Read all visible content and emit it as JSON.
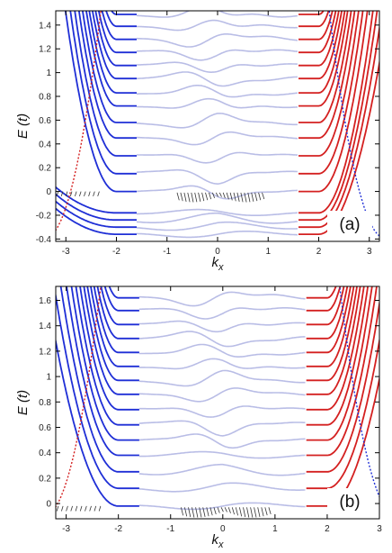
{
  "chart_data": [
    {
      "type": "line",
      "panel_label": "(a)",
      "xlabel_base": "k",
      "xlabel_sub": "x",
      "ylabel": "E (t)",
      "xlim": [
        -3.2,
        3.2
      ],
      "ylim": [
        -0.42,
        1.52
      ],
      "xticks": [
        -3,
        -2,
        -1,
        0,
        1,
        2,
        3
      ],
      "xtick_labels": [
        "-3",
        "-2",
        "-1",
        "0",
        "1",
        "2",
        "3"
      ],
      "yticks": [
        -0.4,
        -0.2,
        0,
        0.2,
        0.4,
        0.6,
        0.8,
        1,
        1.2,
        1.4
      ],
      "ytick_labels": [
        "-0.4",
        "-0.2",
        "0",
        "0.2",
        "0.4",
        "0.6",
        "0.8",
        "1",
        "1.2",
        "1.4"
      ],
      "flat_levels": [
        -0.36,
        -0.3,
        -0.24,
        -0.18,
        0.0,
        0.15,
        0.3,
        0.45,
        0.58,
        0.72,
        0.83,
        0.95,
        1.06,
        1.17,
        1.28,
        1.39,
        1.49
      ],
      "left_edge_levels": [
        -0.36,
        -0.3,
        -0.24,
        -0.18
      ],
      "colors": {
        "left_bands": "#1f2fd6",
        "right_bands": "#d42020",
        "middle": "#b9bde6",
        "arrows": "#333333"
      }
    },
    {
      "type": "line",
      "panel_label": "(b)",
      "xlabel_base": "k",
      "xlabel_sub": "x",
      "ylabel": "E (t)",
      "xlim": [
        -3.2,
        3.0
      ],
      "ylim": [
        -0.12,
        1.71
      ],
      "xticks": [
        -3,
        -2,
        -1,
        0,
        1,
        2,
        3
      ],
      "xtick_labels": [
        "-3",
        "-2",
        "-1",
        "0",
        "1",
        "2",
        "3"
      ],
      "yticks": [
        0,
        0.2,
        0.4,
        0.6,
        0.8,
        1,
        1.2,
        1.4,
        1.6
      ],
      "ytick_labels": [
        "0",
        "0.2",
        "0.4",
        "0.6",
        "0.8",
        "1",
        "1.2",
        "1.4",
        "1.6"
      ],
      "flat_levels": [
        -0.02,
        0.12,
        0.25,
        0.38,
        0.5,
        0.62,
        0.74,
        0.86,
        0.97,
        1.08,
        1.19,
        1.3,
        1.41,
        1.52,
        1.62
      ],
      "left_edge_levels": [],
      "colors": {
        "left_bands": "#1f2fd6",
        "right_bands": "#d42020",
        "middle": "#b9bde6",
        "arrows": "#333333"
      }
    }
  ]
}
